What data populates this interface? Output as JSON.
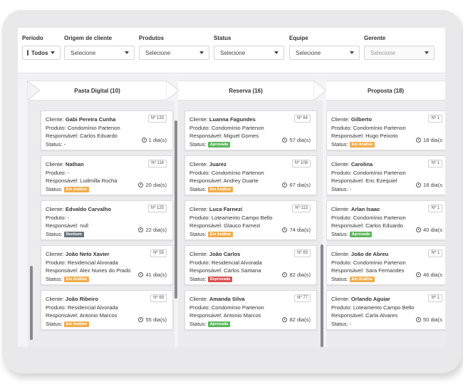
{
  "colors": {
    "em_analise": "#f0ad4e",
    "aprovada": "#5cb85c",
    "reprovada": "#d9534f",
    "nenhum": "#6c757d"
  },
  "filters": [
    {
      "label": "Período",
      "value": "Todos",
      "kind": "period"
    },
    {
      "label": "Origem de cliente",
      "value": "Selecione",
      "kind": "select"
    },
    {
      "label": "Produtos",
      "value": "Selecione",
      "kind": "select"
    },
    {
      "label": "Status",
      "value": "Selecione",
      "kind": "select"
    },
    {
      "label": "Equipe",
      "value": "Selecione",
      "kind": "select"
    },
    {
      "label": "Gerente",
      "value": "Selecione",
      "kind": "disabled"
    }
  ],
  "labels": {
    "cliente": "Cliente: ",
    "produto": "Produto: ",
    "responsavel": "Responsável: ",
    "status": "Status: "
  },
  "columns": [
    {
      "title": "Pasta Digital (10)",
      "cards": [
        {
          "client": "Gabi Pereira Cunha",
          "number": "Nº 133",
          "product": "Condomínio Partenon",
          "responsible": "Carlos Eduardo",
          "status_text": "-",
          "badge": "",
          "badge_color": "",
          "days": "1 dia(s)"
        },
        {
          "client": "Nathan",
          "number": "Nº 116",
          "product": "-",
          "responsible": "Ludmilla Rocha",
          "status_text": "",
          "badge": "Em Análise",
          "badge_color": "em_analise",
          "days": "20 dia(s)"
        },
        {
          "client": "Edvaldo Carvalho",
          "number": "Nº 125",
          "product": "-",
          "responsible": "null",
          "status_text": "",
          "badge": "Nenhum",
          "badge_color": "nenhum",
          "days": "22 dia(s)"
        },
        {
          "client": "João Neto Xavier",
          "number": "Nº 55",
          "product": "Residencial Alvorada",
          "responsible": "Alex Nunes do Prado",
          "status_text": "",
          "badge": "Em Análise",
          "badge_color": "em_analise",
          "days": "41 dia(s)"
        },
        {
          "client": "João Ribeiro",
          "number": "Nº 69",
          "product": "Residencial Alvorada",
          "responsible": "Antonio Marcos",
          "status_text": "",
          "badge": "Em Análise",
          "badge_color": "em_analise",
          "days": "55 dia(s)"
        }
      ]
    },
    {
      "title": "Reserva (16)",
      "cards": [
        {
          "client": "Luanna Fagundes",
          "number": "Nº 64",
          "product": "Condomínio Partenon",
          "responsible": "Miguel Gomes",
          "status_text": "",
          "badge": "Aprovada",
          "badge_color": "aprovada",
          "days": "57 dia(s)"
        },
        {
          "client": "Juarez",
          "number": "Nº 108",
          "product": "Condomínio Partenon",
          "responsible": "Andrey Duarte",
          "status_text": "",
          "badge": "Em Análise",
          "badge_color": "em_analise",
          "days": "67 dia(s)"
        },
        {
          "client": "Luca Farnezi",
          "number": "Nº 113",
          "product": "Loteamento Campo Bello",
          "responsible": "Glauco Farnezi",
          "status_text": "",
          "badge": "Em Análise",
          "badge_color": "em_analise",
          "days": "74 dia(s)"
        },
        {
          "client": "João Carlos",
          "number": "Nº 83",
          "product": "Residencial Alvorada",
          "responsible": "Carlos Santana",
          "status_text": "",
          "badge": "Reprovada",
          "badge_color": "reprovada",
          "days": "82 dia(s)"
        },
        {
          "client": "Amanda Silva",
          "number": "Nº 77",
          "product": "Condomínio Partenon",
          "responsible": "Antonio Marcos",
          "status_text": "",
          "badge": "Aprovada",
          "badge_color": "aprovada",
          "days": "82 dia(s)"
        }
      ]
    },
    {
      "title": "Proposta (18)",
      "cards": [
        {
          "client": "Gilberto",
          "number": "Nº 1",
          "product": "Condomínio Partenon",
          "responsible": "Hugo Peixoto",
          "status_text": "",
          "badge": "Em Análise",
          "badge_color": "em_analise",
          "days": "18 dia(s"
        },
        {
          "client": "Carolina",
          "number": "Nº 1",
          "product": "Condomínio Partenon",
          "responsible": "Eric Ezequiel",
          "status_text": "-",
          "badge": "",
          "badge_color": "",
          "days": "18 dia(s"
        },
        {
          "client": "Arlan Isaac",
          "number": "Nº 1",
          "product": "Condomínio Partenon",
          "responsible": "Carlos Eduardo",
          "status_text": "",
          "badge": "Aprovada",
          "badge_color": "aprovada",
          "days": "40 dia(s"
        },
        {
          "client": "João de Abreu",
          "number": "Nº 1",
          "product": "Condomínio Partenon",
          "responsible": "Sara Fernandes",
          "status_text": "",
          "badge": "Em Análise",
          "badge_color": "em_analise",
          "days": "46 dia(s"
        },
        {
          "client": "Orlando Aguiar",
          "number": "Nº 1",
          "product": "Loteamento Campo Bello",
          "responsible": "Carla Alvares",
          "status_text": "-",
          "badge": "",
          "badge_color": "",
          "days": "50 dia(s"
        }
      ]
    }
  ]
}
